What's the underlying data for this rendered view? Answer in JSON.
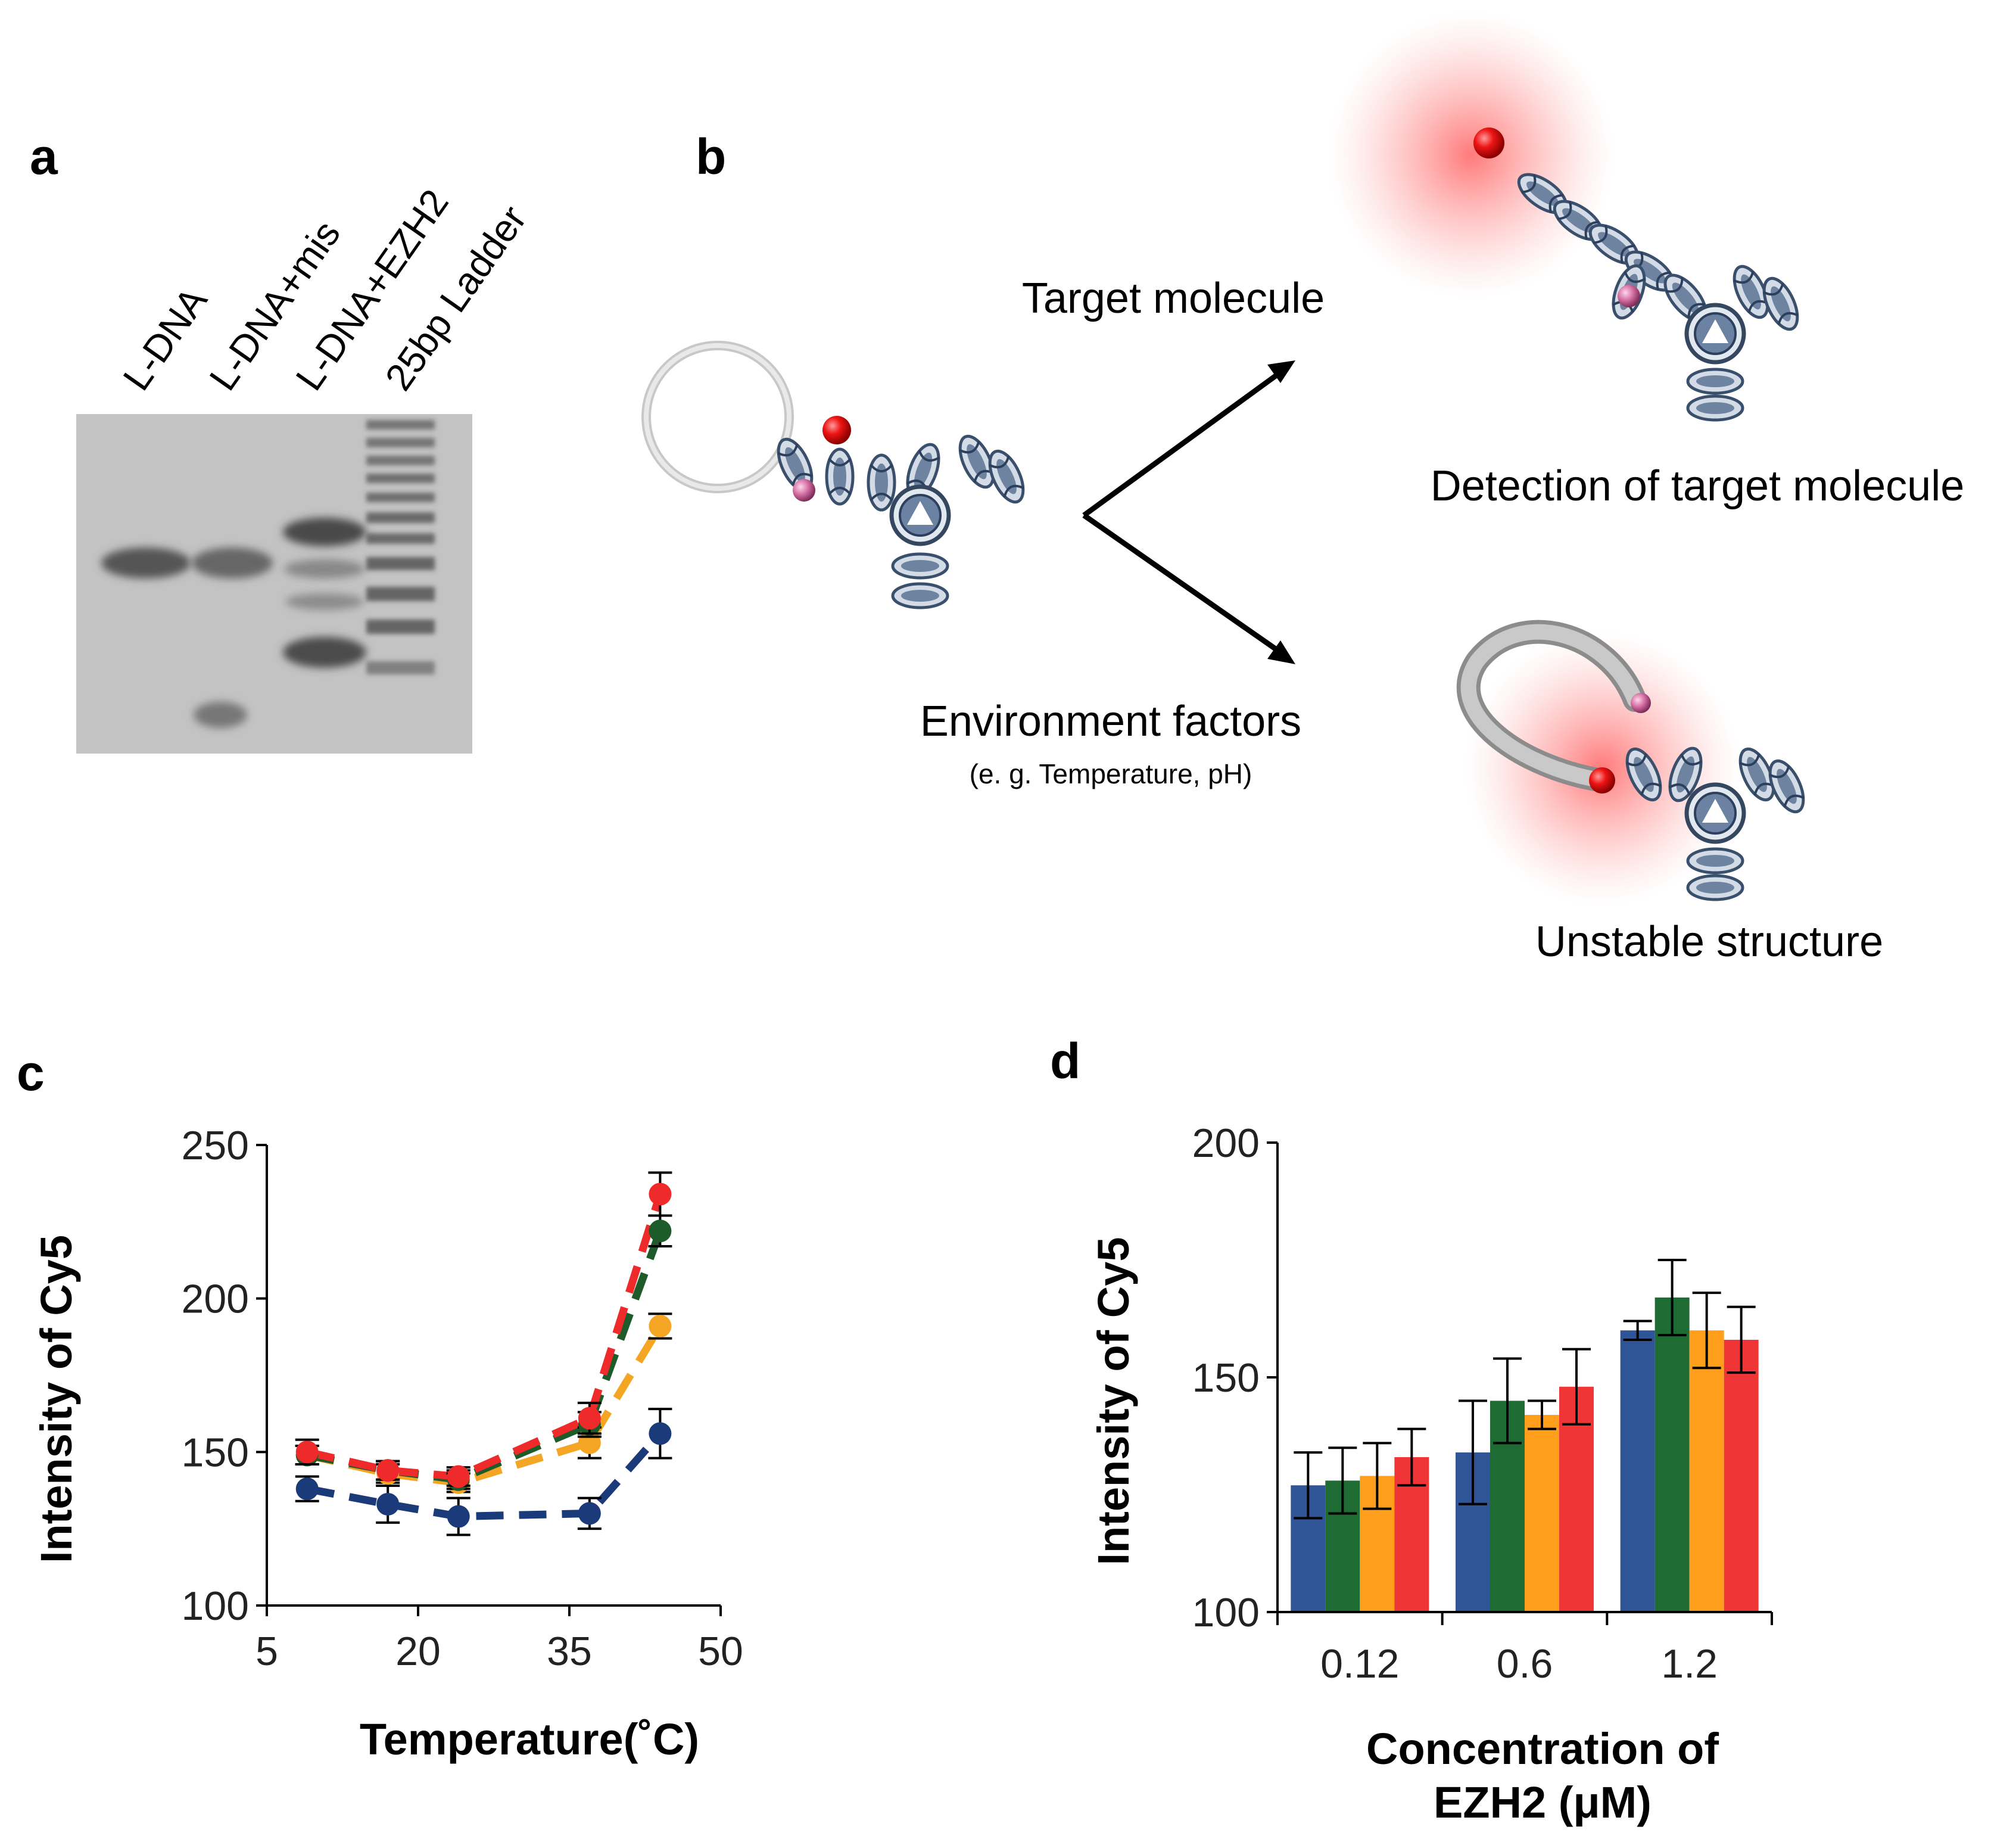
{
  "panels": {
    "a": {
      "letter": "a",
      "lanes": [
        "L-DNA",
        "L-DNA+mis",
        "L-DNA+EZH2",
        "25bp Ladder"
      ]
    },
    "b": {
      "letter": "b",
      "target_label": "Target molecule",
      "detection_label": "Detection of target molecule",
      "env_label": "Environment factors",
      "env_sub": "(e. g. Temperature, pH)",
      "unstable_label": "Unstable structure"
    },
    "c": {
      "letter": "c"
    },
    "d": {
      "letter": "d"
    }
  },
  "colors": {
    "blue": "#1a3a7a",
    "green": "#1e5b2a",
    "orange": "#f5a524",
    "red": "#ee2a2a",
    "bar_blue": "#2f5597",
    "bar_green": "#1f6b34",
    "bar_orange": "#ff9f1c",
    "bar_red": "#ef3535",
    "glow": "#ff6b6b",
    "gel": "#c4c4c4"
  },
  "chart_data": [
    {
      "panel": "c",
      "type": "line",
      "xlabel": "Temperature(˚C)",
      "ylabel": "Intensity of Cy5",
      "xlim": [
        5,
        50
      ],
      "ylim": [
        100,
        250
      ],
      "xticks": [
        "5",
        "20",
        "35",
        "50"
      ],
      "yticks": [
        "100",
        "150",
        "200",
        "250"
      ],
      "x": [
        9,
        17,
        24,
        37,
        44
      ],
      "series": [
        {
          "color": "blue",
          "values": [
            138,
            133,
            129,
            130,
            156
          ],
          "errors": [
            4,
            6,
            6,
            5,
            8
          ]
        },
        {
          "color": "orange",
          "values": [
            149,
            143,
            140,
            153,
            191
          ],
          "errors": [
            3,
            3,
            3,
            5,
            4
          ]
        },
        {
          "color": "green",
          "values": [
            149,
            144,
            141,
            159,
            222
          ],
          "errors": [
            3,
            3,
            3,
            4,
            5
          ]
        },
        {
          "color": "red",
          "values": [
            150,
            144,
            142,
            161,
            234
          ],
          "errors": [
            4,
            3,
            3,
            5,
            7
          ]
        }
      ]
    },
    {
      "panel": "d",
      "type": "bar",
      "xlabel_lines": [
        "Concentration of",
        "EZH2 (μM)"
      ],
      "ylabel": "Intensity of Cy5",
      "ylim": [
        100,
        200
      ],
      "yticks": [
        "100",
        "150",
        "200"
      ],
      "categories": [
        "0.12",
        "0.6",
        "1.2"
      ],
      "series": [
        {
          "color": "bar_blue",
          "values": [
            127,
            134,
            160
          ],
          "errors": [
            7,
            11,
            2
          ]
        },
        {
          "color": "bar_green",
          "values": [
            128,
            145,
            167
          ],
          "errors": [
            7,
            9,
            8
          ]
        },
        {
          "color": "bar_orange",
          "values": [
            129,
            142,
            160
          ],
          "errors": [
            7,
            3,
            8
          ]
        },
        {
          "color": "bar_red",
          "values": [
            133,
            148,
            158
          ],
          "errors": [
            6,
            8,
            7
          ]
        }
      ]
    }
  ]
}
